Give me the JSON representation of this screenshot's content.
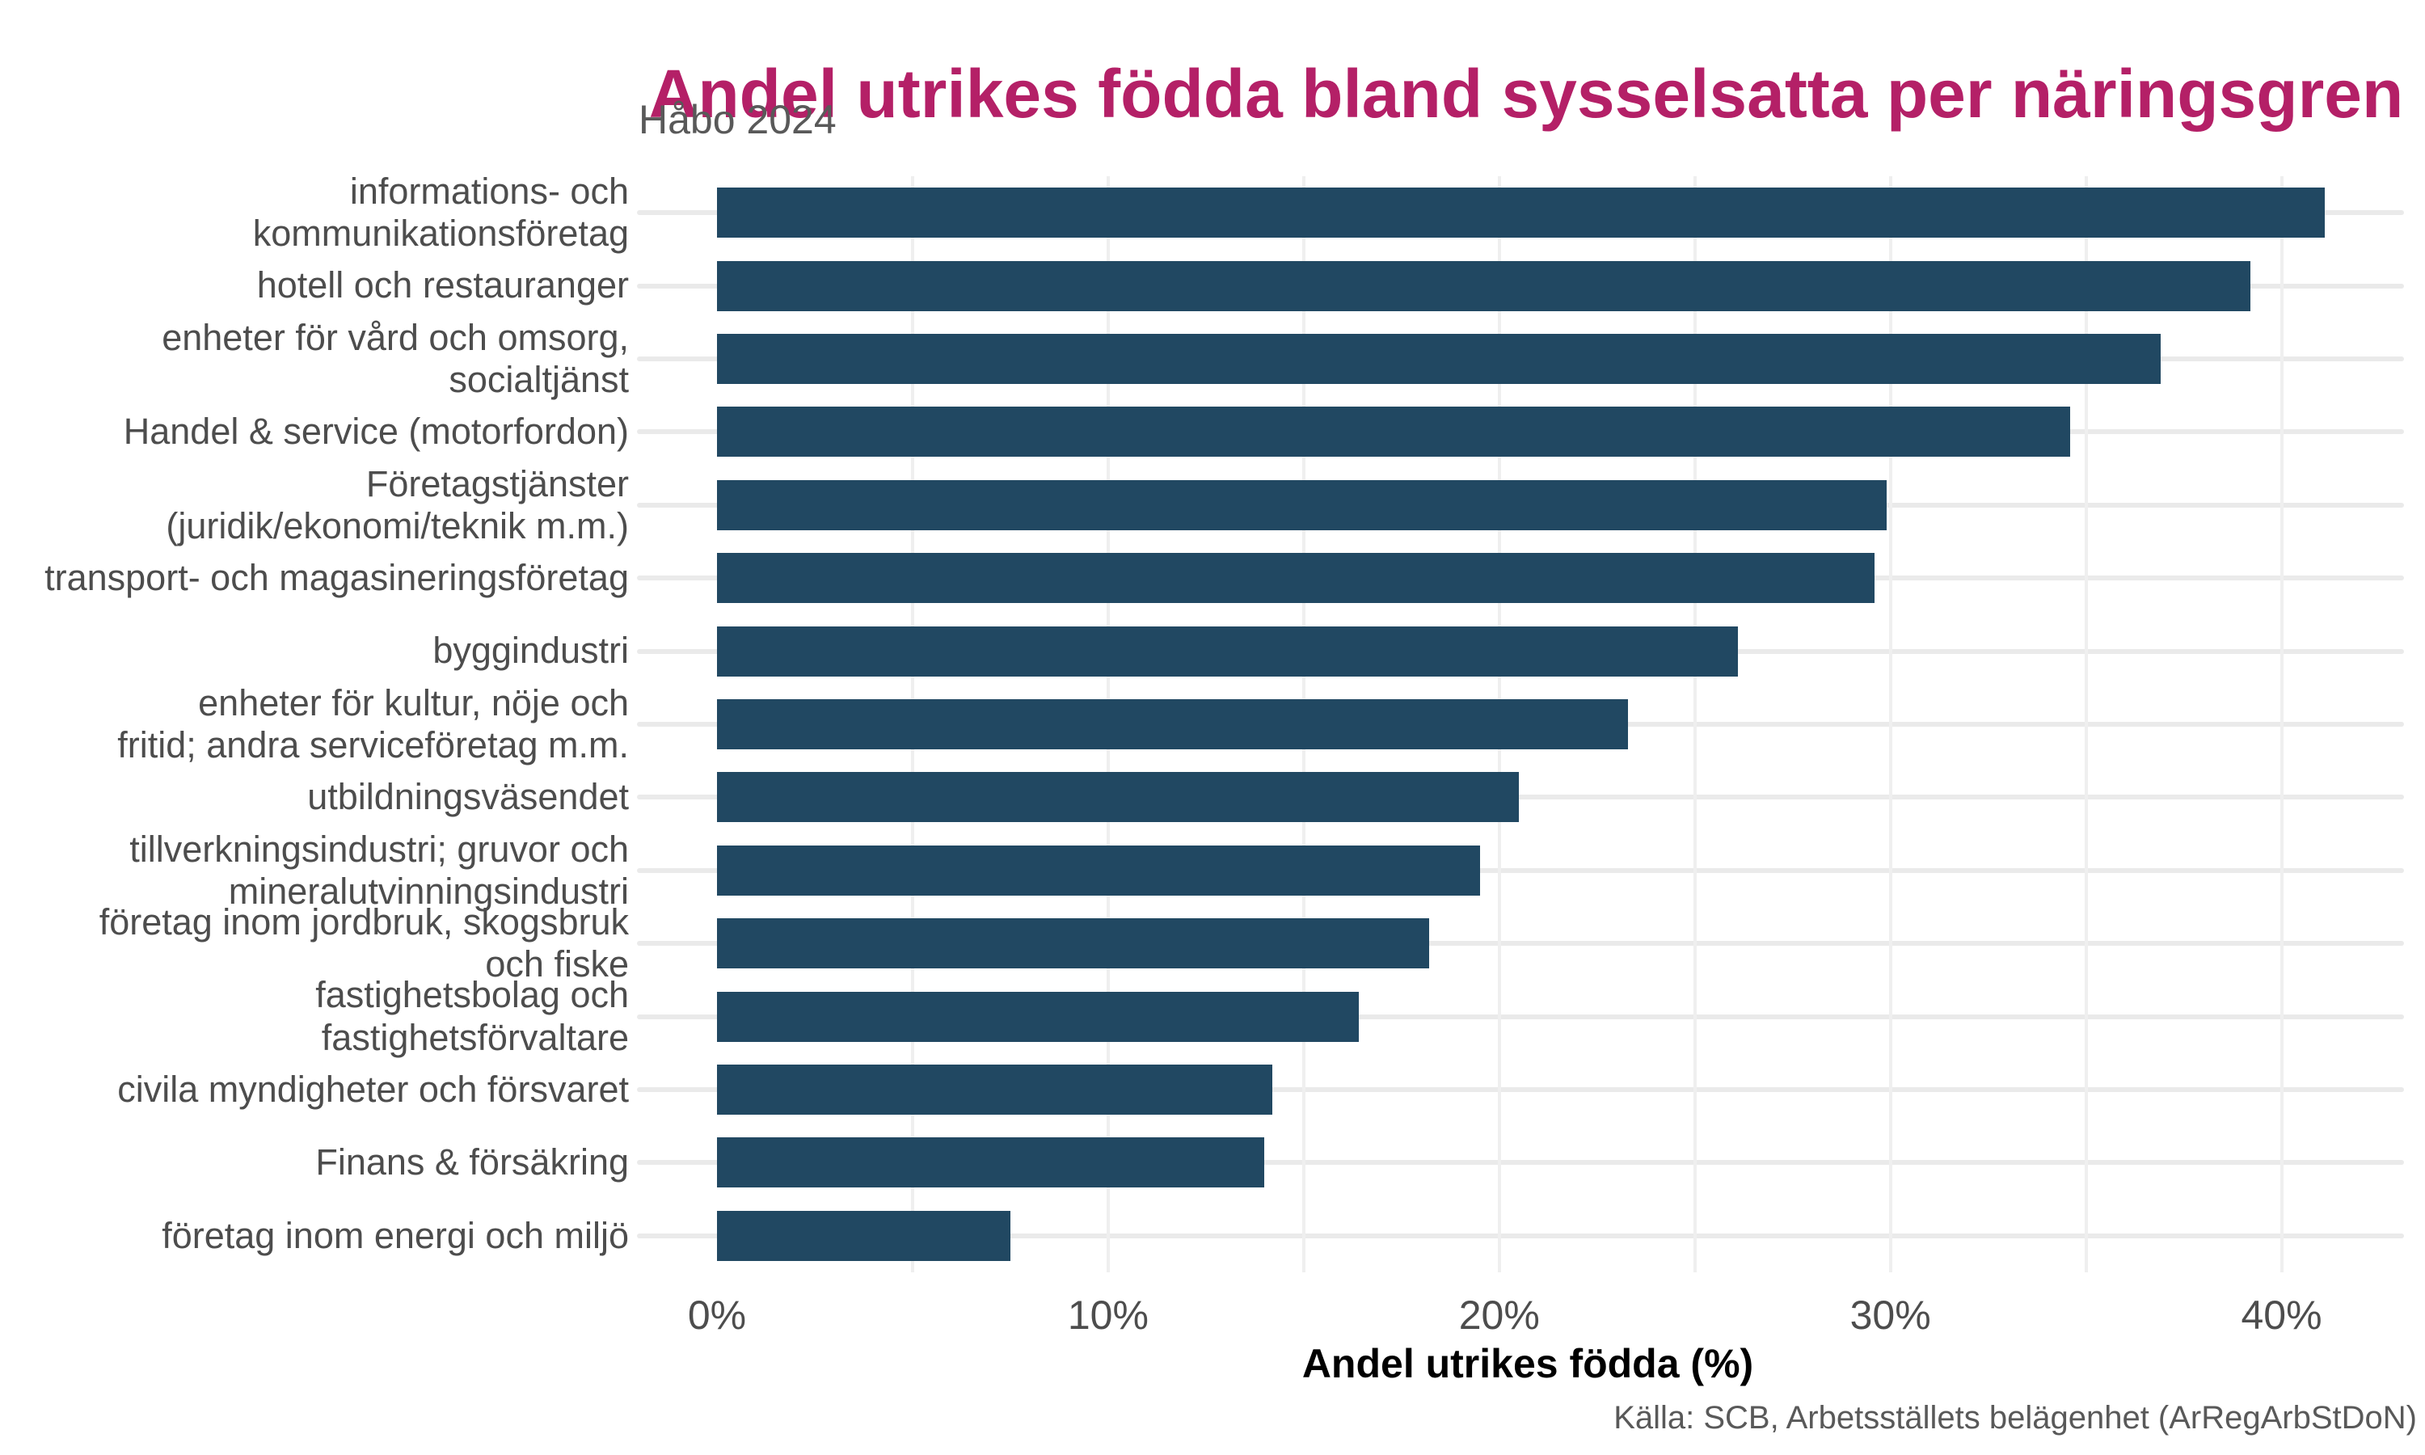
{
  "title": "Andel utrikes födda bland sysselsatta per näringsgren",
  "subtitle": "Håbo 2024",
  "xlabel": "Andel utrikes födda (%)",
  "caption": "Källa: SCB, Arbetsställets belägenhet (ArRegArbStDoN)",
  "colors": {
    "title": "#B42067",
    "subtitle": "#595959",
    "bar": "#214862",
    "axis_text": "#4D4D4D",
    "caption": "#595959",
    "grid_h": "#EAEAEA",
    "grid_v": "#EFEFEF",
    "background": "#FFFFFF"
  },
  "chart_data": {
    "type": "bar",
    "orientation": "horizontal",
    "title": "Andel utrikes födda bland sysselsatta per näringsgren",
    "subtitle": "Håbo 2024",
    "xlabel": "Andel utrikes födda (%)",
    "ylabel": "",
    "unit": "%",
    "grid": "on",
    "legend": "none",
    "xlim": [
      0,
      43.13
    ],
    "x_tick_values": [
      0,
      10,
      20,
      30,
      40
    ],
    "x_ticks": [
      "0%",
      "10%",
      "20%",
      "30%",
      "40%"
    ],
    "grid_x": [
      5,
      10,
      15,
      20,
      25,
      30,
      35,
      40
    ],
    "categories": [
      "informations- och\nkommunikationsföretag",
      "hotell och restauranger",
      "enheter för vård och omsorg,\nsocialtjänst",
      "Handel & service (motorfordon)",
      "Företagstjänster\n(juridik/ekonomi/teknik m.m.)",
      "transport- och magasineringsföretag",
      "byggindustri",
      "enheter för kultur, nöje och\nfritid; andra serviceföretag m.m.",
      "utbildningsväsendet",
      "tillverkningsindustri; gruvor och\nmineralutvinningsindustri",
      "företag inom jordbruk, skogsbruk\noch fiske",
      "fastighetsbolag och\nfastighetsförvaltare",
      "civila myndigheter och försvaret",
      "Finans & försäkring",
      "företag inom energi och miljö"
    ],
    "values": [
      41.1,
      39.2,
      36.9,
      34.6,
      29.9,
      29.6,
      26.1,
      23.3,
      20.5,
      19.5,
      18.2,
      16.4,
      14.2,
      14.0,
      7.5
    ]
  }
}
